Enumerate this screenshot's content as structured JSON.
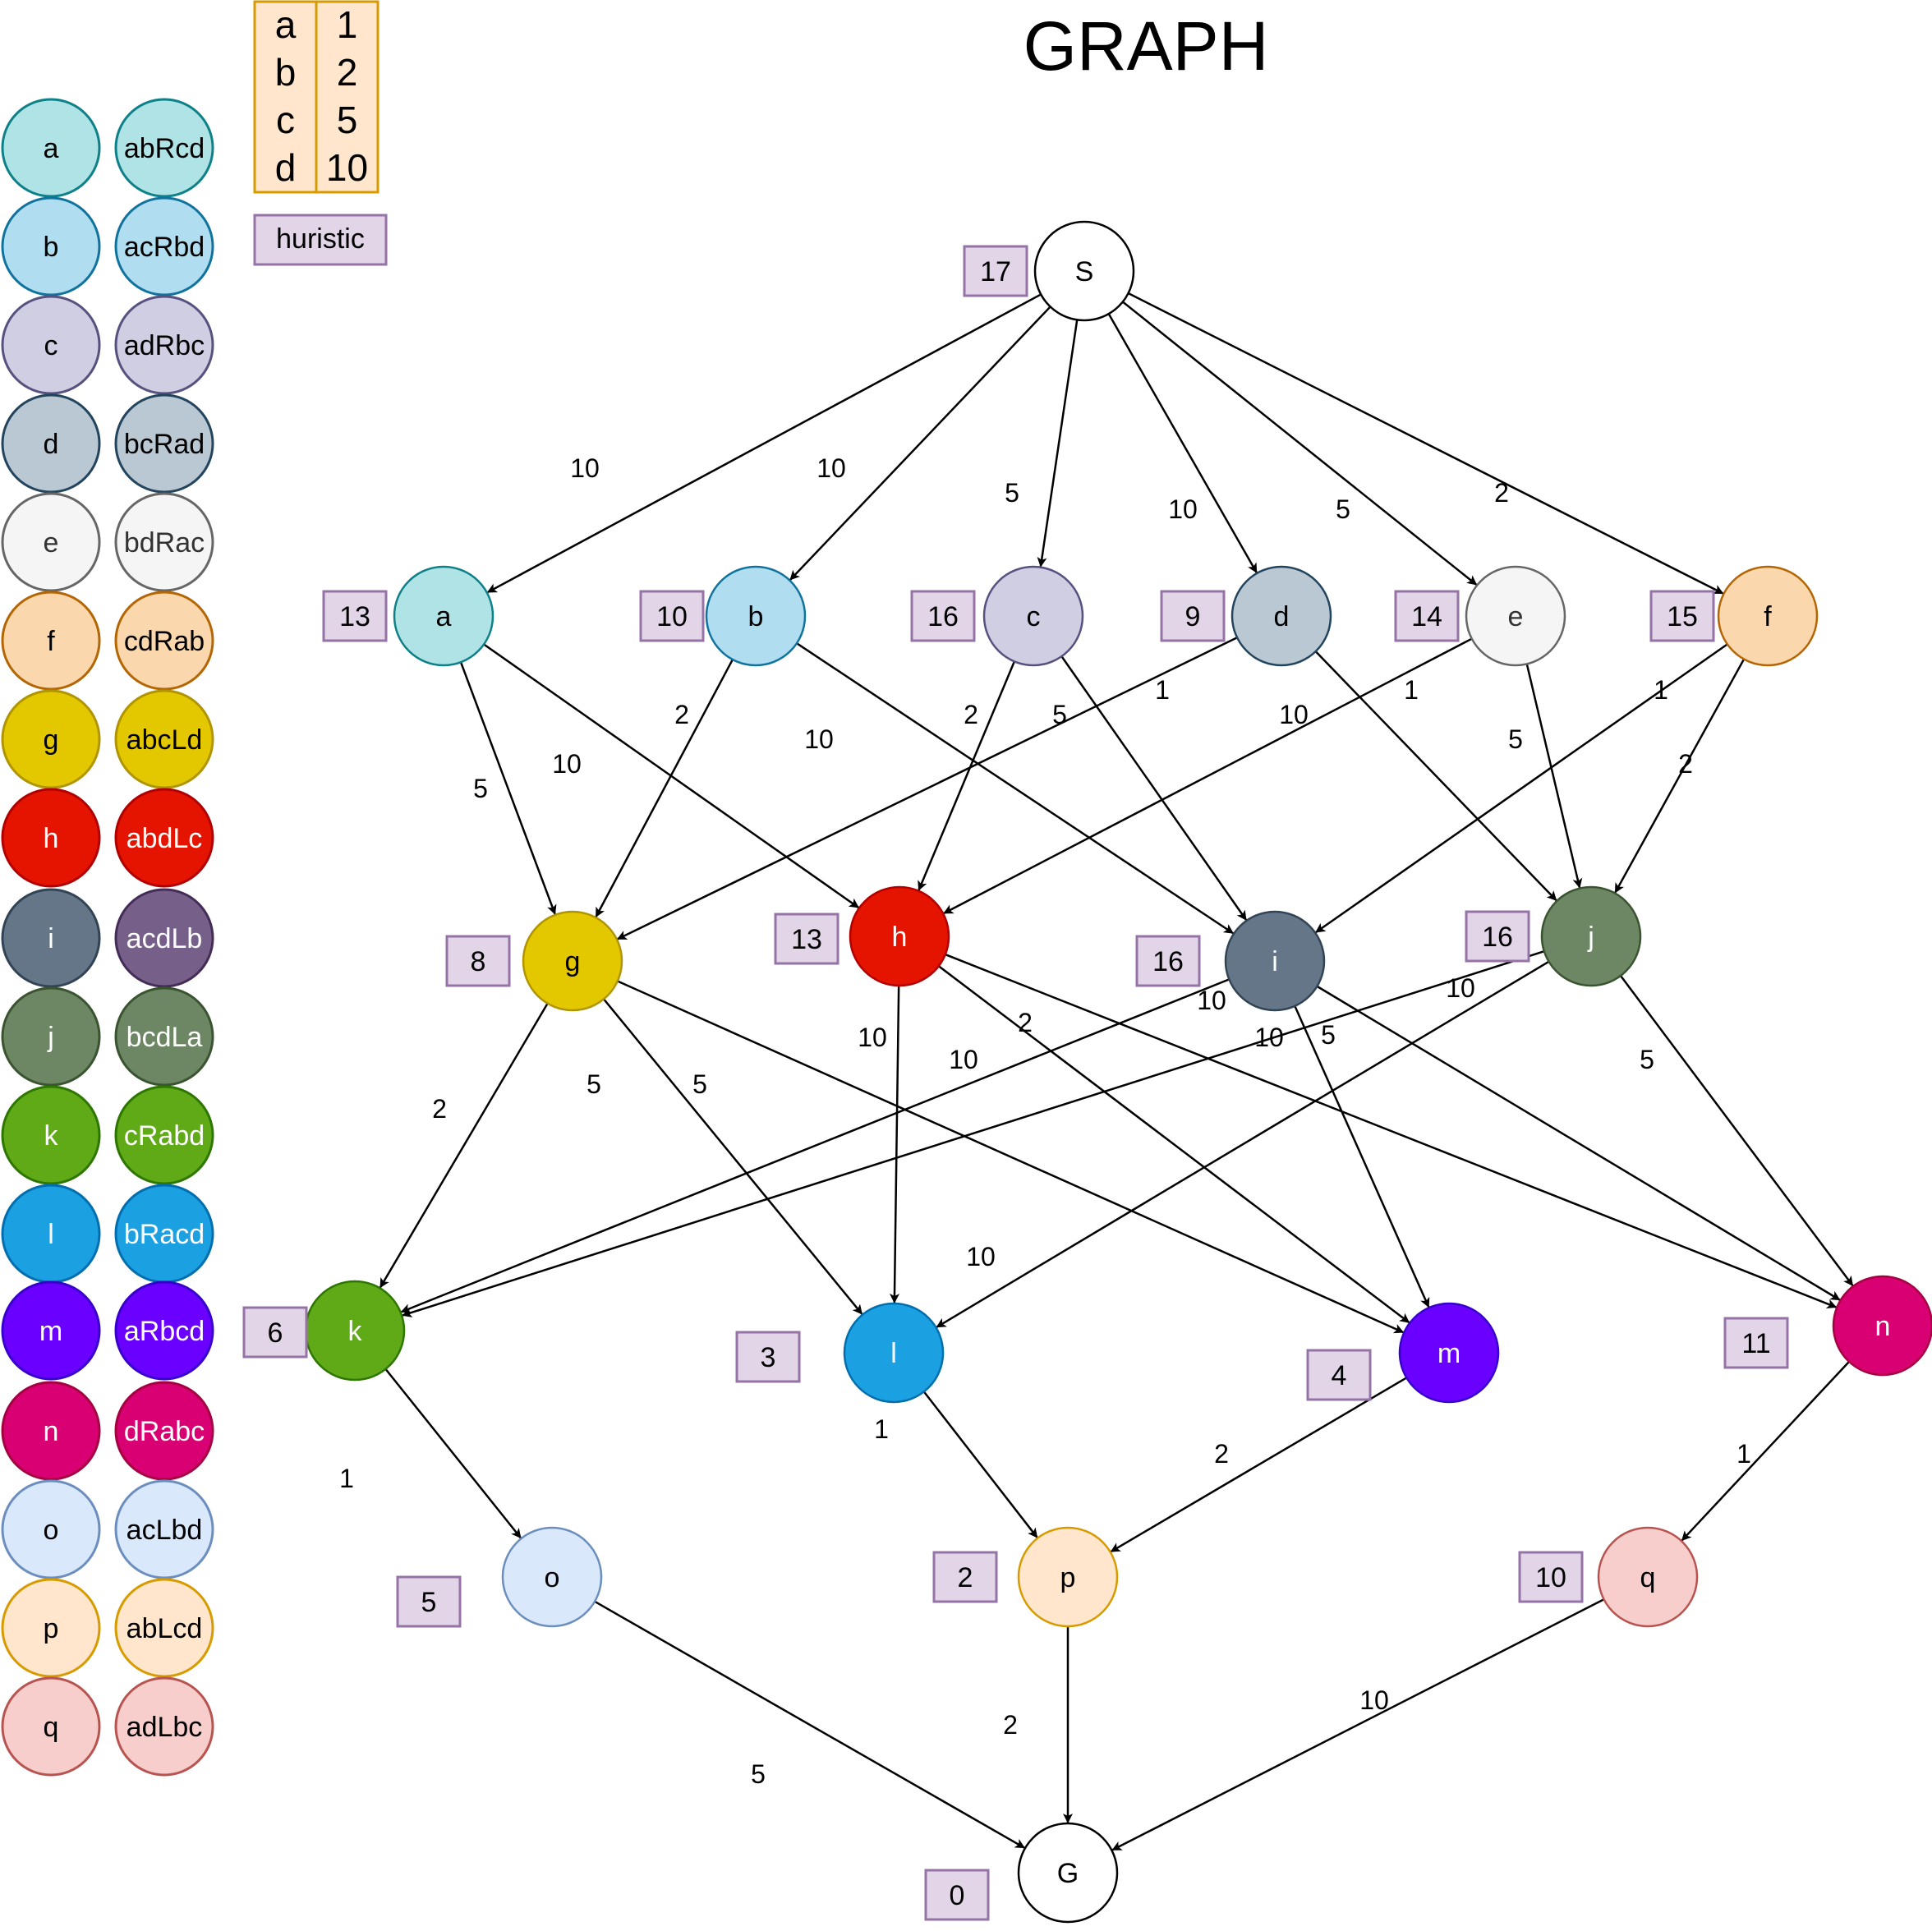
{
  "title": "GRAPH",
  "cost_table": [
    {
      "item": "a",
      "cost": "1"
    },
    {
      "item": "b",
      "cost": "2"
    },
    {
      "item": "c",
      "cost": "5"
    },
    {
      "item": "d",
      "cost": "10"
    }
  ],
  "heuristic_label": "huristic",
  "legend": [
    {
      "node": "a",
      "state": "abRcd",
      "fill": "#b0e3e6",
      "stroke": "#0e8088",
      "text": "#000000"
    },
    {
      "node": "b",
      "state": "acRbd",
      "fill": "#b1ddf0",
      "stroke": "#10739e",
      "text": "#000000"
    },
    {
      "node": "c",
      "state": "adRbc",
      "fill": "#d0cee2",
      "stroke": "#56517e",
      "text": "#000000"
    },
    {
      "node": "d",
      "state": "bcRad",
      "fill": "#bac8d3",
      "stroke": "#23445d",
      "text": "#000000"
    },
    {
      "node": "e",
      "state": "bdRac",
      "fill": "#f5f5f5",
      "stroke": "#666666",
      "text": "#333333"
    },
    {
      "node": "f",
      "state": "cdRab",
      "fill": "#fad7ac",
      "stroke": "#b46504",
      "text": "#000000"
    },
    {
      "node": "g",
      "state": "abcLd",
      "fill": "#e3c800",
      "stroke": "#b09500",
      "text": "#000000"
    },
    {
      "node": "h",
      "state": "abdLc",
      "fill": "#e51400",
      "stroke": "#b20000",
      "text": "#ffffff"
    },
    {
      "node": "i",
      "state": "acdLb",
      "fill": "#647687",
      "stroke": "#314354",
      "text": "#ffffff",
      "state_fill": "#76608a",
      "state_stroke": "#432d57"
    },
    {
      "node": "j",
      "state": "bcdLa",
      "fill": "#6d8764",
      "stroke": "#3a5431",
      "text": "#ffffff"
    },
    {
      "node": "k",
      "state": "cRabd",
      "fill": "#60a917",
      "stroke": "#2d7600",
      "text": "#ffffff"
    },
    {
      "node": "l",
      "state": "bRacd",
      "fill": "#1ba1e2",
      "stroke": "#006eaf",
      "text": "#ffffff"
    },
    {
      "node": "m",
      "state": "aRbcd",
      "fill": "#6a00ff",
      "stroke": "#3700cc",
      "text": "#ffffff"
    },
    {
      "node": "n",
      "state": "dRabc",
      "fill": "#d80073",
      "stroke": "#a50040",
      "text": "#ffffff"
    },
    {
      "node": "o",
      "state": "acLbd",
      "fill": "#dae8fc",
      "stroke": "#6c8ebf",
      "text": "#000000"
    },
    {
      "node": "p",
      "state": "abLcd",
      "fill": "#ffe6cc",
      "stroke": "#d79b00",
      "text": "#000000"
    },
    {
      "node": "q",
      "state": "adLbc",
      "fill": "#f8cecc",
      "stroke": "#b85450",
      "text": "#000000"
    }
  ],
  "graph": {
    "nodes": [
      {
        "id": "S",
        "label": "S",
        "heuristic": "17",
        "fill": "#ffffff",
        "stroke": "#000000",
        "text": "#000000"
      },
      {
        "id": "a",
        "label": "a",
        "heuristic": "13",
        "fill": "#b0e3e6",
        "stroke": "#0e8088",
        "text": "#000000"
      },
      {
        "id": "b",
        "label": "b",
        "heuristic": "10",
        "fill": "#b1ddf0",
        "stroke": "#10739e",
        "text": "#000000"
      },
      {
        "id": "c",
        "label": "c",
        "heuristic": "16",
        "fill": "#d0cee2",
        "stroke": "#56517e",
        "text": "#000000"
      },
      {
        "id": "d",
        "label": "d",
        "heuristic": "9",
        "fill": "#bac8d3",
        "stroke": "#23445d",
        "text": "#000000"
      },
      {
        "id": "e",
        "label": "e",
        "heuristic": "14",
        "fill": "#f5f5f5",
        "stroke": "#666666",
        "text": "#333333"
      },
      {
        "id": "f",
        "label": "f",
        "heuristic": "15",
        "fill": "#fad7ac",
        "stroke": "#b46504",
        "text": "#000000"
      },
      {
        "id": "g",
        "label": "g",
        "heuristic": "8",
        "fill": "#e3c800",
        "stroke": "#b09500",
        "text": "#000000"
      },
      {
        "id": "h",
        "label": "h",
        "heuristic": "13",
        "fill": "#e51400",
        "stroke": "#b20000",
        "text": "#ffffff"
      },
      {
        "id": "i",
        "label": "i",
        "heuristic": "16",
        "fill": "#647687",
        "stroke": "#314354",
        "text": "#ffffff"
      },
      {
        "id": "j",
        "label": "j",
        "heuristic": "16",
        "fill": "#6d8764",
        "stroke": "#3a5431",
        "text": "#ffffff"
      },
      {
        "id": "k",
        "label": "k",
        "heuristic": "6",
        "fill": "#60a917",
        "stroke": "#2d7600",
        "text": "#ffffff"
      },
      {
        "id": "l",
        "label": "l",
        "heuristic": "3",
        "fill": "#1ba1e2",
        "stroke": "#006eaf",
        "text": "#ffffff"
      },
      {
        "id": "m",
        "label": "m",
        "heuristic": "4",
        "fill": "#6a00ff",
        "stroke": "#3700cc",
        "text": "#ffffff"
      },
      {
        "id": "n",
        "label": "n",
        "heuristic": "11",
        "fill": "#d80073",
        "stroke": "#a50040",
        "text": "#ffffff"
      },
      {
        "id": "o",
        "label": "o",
        "heuristic": "5",
        "fill": "#dae8fc",
        "stroke": "#6c8ebf",
        "text": "#000000"
      },
      {
        "id": "p",
        "label": "p",
        "heuristic": "2",
        "fill": "#ffe6cc",
        "stroke": "#d79b00",
        "text": "#000000"
      },
      {
        "id": "q",
        "label": "q",
        "heuristic": "10",
        "fill": "#f8cecc",
        "stroke": "#b85450",
        "text": "#000000"
      },
      {
        "id": "G",
        "label": "G",
        "heuristic": "0",
        "fill": "#ffffff",
        "stroke": "#000000",
        "text": "#000000"
      }
    ],
    "edges": [
      {
        "from": "S",
        "to": "a",
        "weight": "10"
      },
      {
        "from": "S",
        "to": "b",
        "weight": "10"
      },
      {
        "from": "S",
        "to": "c",
        "weight": "5"
      },
      {
        "from": "S",
        "to": "d",
        "weight": "10"
      },
      {
        "from": "S",
        "to": "e",
        "weight": "5"
      },
      {
        "from": "S",
        "to": "f",
        "weight": "2"
      },
      {
        "from": "a",
        "to": "g",
        "weight": "5"
      },
      {
        "from": "a",
        "to": "h",
        "weight": "10"
      },
      {
        "from": "b",
        "to": "g",
        "weight": "2"
      },
      {
        "from": "b",
        "to": "i",
        "weight": "10"
      },
      {
        "from": "c",
        "to": "h",
        "weight": "2"
      },
      {
        "from": "c",
        "to": "i",
        "weight": "5"
      },
      {
        "from": "d",
        "to": "g",
        "weight": "1"
      },
      {
        "from": "d",
        "to": "j",
        "weight": "10"
      },
      {
        "from": "e",
        "to": "h",
        "weight": "1"
      },
      {
        "from": "e",
        "to": "j",
        "weight": "5"
      },
      {
        "from": "f",
        "to": "i",
        "weight": "1"
      },
      {
        "from": "f",
        "to": "j",
        "weight": "2"
      },
      {
        "from": "g",
        "to": "k",
        "weight": "2"
      },
      {
        "from": "g",
        "to": "l",
        "weight": "5"
      },
      {
        "from": "g",
        "to": "m",
        "weight": "5"
      },
      {
        "from": "h",
        "to": "l",
        "weight": "10"
      },
      {
        "from": "h",
        "to": "m",
        "weight": "10"
      },
      {
        "from": "h",
        "to": "n",
        "weight": "2"
      },
      {
        "from": "i",
        "to": "k",
        "weight": "10"
      },
      {
        "from": "i",
        "to": "m",
        "weight": "10"
      },
      {
        "from": "i",
        "to": "n",
        "weight": "5"
      },
      {
        "from": "j",
        "to": "k",
        "weight": "10"
      },
      {
        "from": "j",
        "to": "l",
        "weight": "10"
      },
      {
        "from": "j",
        "to": "n",
        "weight": "5"
      },
      {
        "from": "k",
        "to": "o",
        "weight": "1"
      },
      {
        "from": "l",
        "to": "p",
        "weight": "1"
      },
      {
        "from": "m",
        "to": "p",
        "weight": "2"
      },
      {
        "from": "n",
        "to": "q",
        "weight": "1"
      },
      {
        "from": "o",
        "to": "G",
        "weight": "5"
      },
      {
        "from": "p",
        "to": "G",
        "weight": "2"
      },
      {
        "from": "q",
        "to": "G",
        "weight": "10"
      }
    ]
  }
}
